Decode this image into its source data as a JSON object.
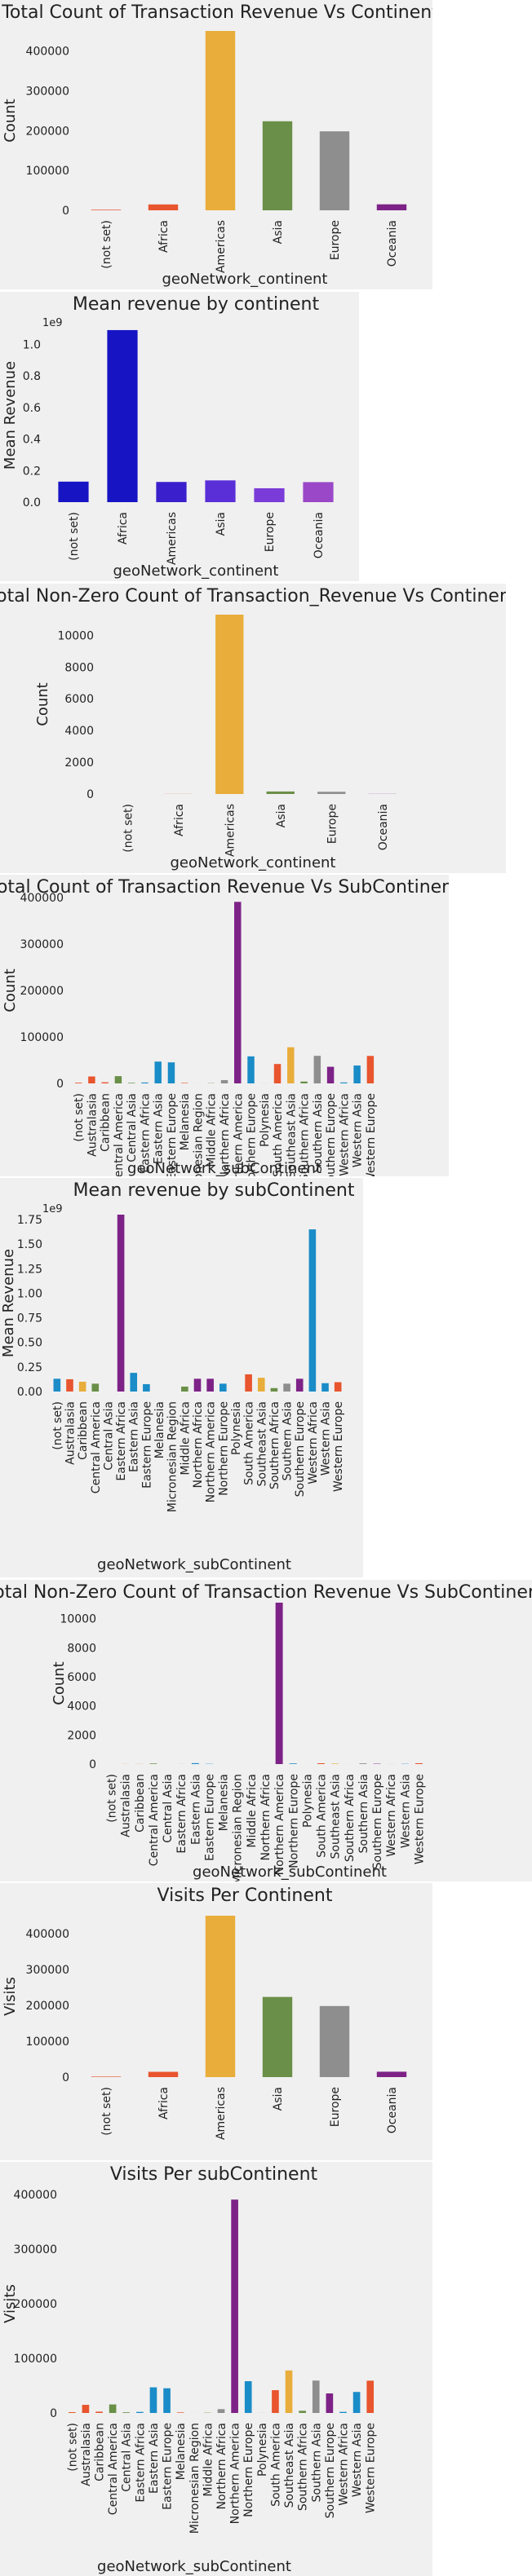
{
  "colors": {
    "panel_bg": "#f0f0f0",
    "tab_orange": "#e8552e",
    "tab_yellow": "#e8ad3a",
    "tab_green": "#6a8f48",
    "tab_grey": "#8e8e8e",
    "tab_purple": "#7d2287",
    "tab_blue": "#1a8cc8",
    "grad_blue": "#1714c4",
    "grad_violet": "#5a2fd8",
    "grad_purple": "#9a48c8"
  },
  "chart_data": [
    {
      "id": "c1",
      "type": "bar",
      "title": "Total Count of Transaction Revenue Vs Continent",
      "xlabel": "geoNetwork_continent",
      "ylabel": "Count",
      "categories": [
        "(not set)",
        "Africa",
        "Americas",
        "Asia",
        "Europe",
        "Oceania"
      ],
      "values": [
        1468,
        14745,
        450377,
        223698,
        198311,
        15054
      ],
      "colors": [
        "#e8552e",
        "#e8552e",
        "#e8ad3a",
        "#6a8f48",
        "#8e8e8e",
        "#7d2287"
      ],
      "ylim": [
        0,
        450377
      ],
      "yticks": [
        0,
        100000,
        200000,
        300000,
        400000
      ],
      "ytick_labels": [
        "0",
        "100000",
        "200000",
        "300000",
        "400000"
      ],
      "exponent": "",
      "grid": false
    },
    {
      "id": "c2",
      "type": "bar",
      "title": "Mean revenue by continent",
      "xlabel": "geoNetwork_continent",
      "ylabel": "Mean Revenue",
      "categories": [
        "(not set)",
        "Africa",
        "Americas",
        "Asia",
        "Europe",
        "Oceania"
      ],
      "values": [
        130000000,
        1090000000,
        128000000,
        138000000,
        88000000,
        127000000
      ],
      "colors": [
        "#1714c4",
        "#1714c4",
        "#3a20cc",
        "#5a2fd8",
        "#7a3cd8",
        "#9a48c8"
      ],
      "ylim": [
        0,
        1100000000
      ],
      "yticks": [
        0,
        200000000,
        400000000,
        600000000,
        800000000,
        1000000000
      ],
      "ytick_labels": [
        "0.0",
        "0.2",
        "0.4",
        "0.6",
        "0.8",
        "1.0"
      ],
      "exponent": "1e9",
      "grid": false
    },
    {
      "id": "c3",
      "type": "bar",
      "title": "Total Non-Zero Count of Transaction_Revenue Vs Continent",
      "xlabel": "geoNetwork_continent",
      "ylabel": "Count",
      "categories": [
        "(not set)",
        "Africa",
        "Americas",
        "Asia",
        "Europe",
        "Oceania"
      ],
      "values": [
        0,
        7,
        11301,
        159,
        140,
        8
      ],
      "colors": [
        "#e8552e",
        "#e8552e",
        "#e8ad3a",
        "#6a8f48",
        "#8e8e8e",
        "#7d2287"
      ],
      "ylim": [
        0,
        11301
      ],
      "yticks": [
        0,
        2000,
        4000,
        6000,
        8000,
        10000
      ],
      "ytick_labels": [
        "0",
        "2000",
        "4000",
        "6000",
        "8000",
        "10000"
      ],
      "exponent": "",
      "grid": false
    },
    {
      "id": "c4",
      "type": "bar",
      "title": "Total Count of Transaction Revenue Vs SubContinent",
      "xlabel": "geoNetwork_subContinent",
      "ylabel": "Count",
      "categories": [
        "(not set)",
        "Australasia",
        "Caribbean",
        "Central America",
        "Central Asia",
        "Eastern Africa",
        "Eastern Asia",
        "Eastern Europe",
        "Melanesia",
        "Micronesian Region",
        "Middle Africa",
        "Northern Africa",
        "Northern America",
        "Northern Europe",
        "Polynesia",
        "South America",
        "Southeast Asia",
        "Southern Africa",
        "Southern Asia",
        "Southern Europe",
        "Western Africa",
        "Western Asia",
        "Western Europe"
      ],
      "values": [
        1468,
        14893,
        2406,
        15583,
        1215,
        1927,
        46919,
        45249,
        1000,
        100,
        500,
        7000,
        390657,
        58168,
        100,
        41731,
        77800,
        4000,
        59321,
        35780,
        2000,
        38443,
        59114
      ],
      "colors": [
        "#e8552e",
        "#e8552e",
        "#e8552e",
        "#6a8f48",
        "#6a8f48",
        "#1a8cc8",
        "#1a8cc8",
        "#1a8cc8",
        "#e8552e",
        "#e8ad3a",
        "#6a8f48",
        "#8e8e8e",
        "#7d2287",
        "#1a8cc8",
        "#e8552e",
        "#e8552e",
        "#e8ad3a",
        "#6a8f48",
        "#8e8e8e",
        "#7d2287",
        "#1a8cc8",
        "#1a8cc8",
        "#e8552e"
      ],
      "ylim": [
        0,
        400000
      ],
      "yticks": [
        0,
        100000,
        200000,
        300000,
        400000
      ],
      "ytick_labels": [
        "0",
        "100000",
        "200000",
        "300000",
        "400000"
      ],
      "exponent": "",
      "grid": false
    },
    {
      "id": "c5",
      "type": "bar",
      "title": "Mean revenue by subContinent",
      "xlabel": "geoNetwork_subContinent",
      "ylabel": "Mean Revenue",
      "categories": [
        "(not set)",
        "Australasia",
        "Caribbean",
        "Central America",
        "Central Asia",
        "Eastern Africa",
        "Eastern Asia",
        "Eastern Europe",
        "Melanesia",
        "Micronesian Region",
        "Middle Africa",
        "Northern Africa",
        "Northern America",
        "Northern Europe",
        "Polynesia",
        "South America",
        "Southeast Asia",
        "Southern Africa",
        "Southern Asia",
        "Southern Europe",
        "Western Africa",
        "Western Asia",
        "Western Europe"
      ],
      "values": [
        130000000,
        125000000,
        100000000,
        80000000,
        0,
        1800000000,
        190000000,
        75000000,
        0,
        0,
        50000000,
        130000000,
        130000000,
        80000000,
        0,
        175000000,
        140000000,
        35000000,
        80000000,
        130000000,
        1650000000,
        85000000,
        95000000
      ],
      "colors": [
        "#1a8cc8",
        "#e8552e",
        "#e8ad3a",
        "#6a8f48",
        "#8e8e8e",
        "#7d2287",
        "#1a8cc8",
        "#1a8cc8",
        "#e8552e",
        "#e8ad3a",
        "#6a8f48",
        "#7d2287",
        "#7d2287",
        "#1a8cc8",
        "#e8552e",
        "#e8552e",
        "#e8ad3a",
        "#6a8f48",
        "#8e8e8e",
        "#7d2287",
        "#1a8cc8",
        "#1a8cc8",
        "#e8552e"
      ],
      "ylim": [
        0,
        1800000000
      ],
      "yticks": [
        0,
        250000000,
        500000000,
        750000000,
        1000000000,
        1250000000,
        1500000000,
        1750000000
      ],
      "ytick_labels": [
        "0.00",
        "0.25",
        "0.50",
        "0.75",
        "1.00",
        "1.25",
        "1.50",
        "1.75"
      ],
      "exponent": "1e9",
      "grid": false
    },
    {
      "id": "c6",
      "type": "bar",
      "title": "Total Non-Zero Count of Transaction Revenue Vs SubContinent",
      "xlabel": "geoNetwork_subContinent",
      "ylabel": "Count",
      "categories": [
        "(not set)",
        "Australasia",
        "Caribbean",
        "Central America",
        "Central Asia",
        "Eastern Africa",
        "Eastern Asia",
        "Eastern Europe",
        "Melanesia",
        "Micronesian Region",
        "Middle Africa",
        "Northern Africa",
        "Northern America",
        "Northern Europe",
        "Polynesia",
        "South America",
        "Southeast Asia",
        "Southern Africa",
        "Southern Asia",
        "Southern Europe",
        "Western Africa",
        "Western Asia",
        "Western Europe"
      ],
      "values": [
        0,
        6,
        7,
        40,
        0,
        3,
        63,
        18,
        0,
        0,
        1,
        2,
        11100,
        44,
        0,
        56,
        35,
        2,
        48,
        24,
        3,
        17,
        60
      ],
      "colors": [
        "#e8552e",
        "#e8552e",
        "#e8552e",
        "#6a8f48",
        "#6a8f48",
        "#1a8cc8",
        "#1a8cc8",
        "#1a8cc8",
        "#e8552e",
        "#e8ad3a",
        "#6a8f48",
        "#8e8e8e",
        "#7d2287",
        "#1a8cc8",
        "#e8552e",
        "#e8552e",
        "#e8ad3a",
        "#6a8f48",
        "#8e8e8e",
        "#7d2287",
        "#1a8cc8",
        "#1a8cc8",
        "#e8552e"
      ],
      "ylim": [
        0,
        11100
      ],
      "yticks": [
        0,
        2000,
        4000,
        6000,
        8000,
        10000
      ],
      "ytick_labels": [
        "0",
        "2000",
        "4000",
        "6000",
        "8000",
        "10000"
      ],
      "exponent": "",
      "grid": false
    },
    {
      "id": "c7",
      "type": "bar",
      "title": "Visits Per Continent",
      "xlabel": "",
      "ylabel": "Visits",
      "categories": [
        "(not set)",
        "Africa",
        "Americas",
        "Asia",
        "Europe",
        "Oceania"
      ],
      "values": [
        1468,
        14745,
        450377,
        223698,
        198311,
        15054
      ],
      "colors": [
        "#e8552e",
        "#e8552e",
        "#e8ad3a",
        "#6a8f48",
        "#8e8e8e",
        "#7d2287"
      ],
      "ylim": [
        0,
        450377
      ],
      "yticks": [
        0,
        100000,
        200000,
        300000,
        400000
      ],
      "ytick_labels": [
        "0",
        "100000",
        "200000",
        "300000",
        "400000"
      ],
      "exponent": "",
      "grid": false
    },
    {
      "id": "c8",
      "type": "bar",
      "title": "Visits Per subContinent",
      "xlabel": "geoNetwork_subContinent",
      "ylabel": "Visits",
      "categories": [
        "(not set)",
        "Australasia",
        "Caribbean",
        "Central America",
        "Central Asia",
        "Eastern Africa",
        "Eastern Asia",
        "Eastern Europe",
        "Melanesia",
        "Micronesian Region",
        "Middle Africa",
        "Northern Africa",
        "Northern America",
        "Northern Europe",
        "Polynesia",
        "South America",
        "Southeast Asia",
        "Southern Africa",
        "Southern Asia",
        "Southern Europe",
        "Western Africa",
        "Western Asia",
        "Western Europe"
      ],
      "values": [
        1468,
        14893,
        2406,
        15583,
        1215,
        1927,
        46919,
        45249,
        1000,
        100,
        500,
        7000,
        390657,
        58168,
        100,
        41731,
        77800,
        4000,
        59321,
        35780,
        2000,
        38443,
        59114
      ],
      "colors": [
        "#e8552e",
        "#e8552e",
        "#e8552e",
        "#6a8f48",
        "#6a8f48",
        "#1a8cc8",
        "#1a8cc8",
        "#1a8cc8",
        "#e8552e",
        "#e8ad3a",
        "#6a8f48",
        "#8e8e8e",
        "#7d2287",
        "#1a8cc8",
        "#e8552e",
        "#e8552e",
        "#e8ad3a",
        "#6a8f48",
        "#8e8e8e",
        "#7d2287",
        "#1a8cc8",
        "#1a8cc8",
        "#e8552e"
      ],
      "ylim": [
        0,
        400000
      ],
      "yticks": [
        0,
        100000,
        200000,
        300000,
        400000
      ],
      "ytick_labels": [
        "0",
        "100000",
        "200000",
        "300000",
        "400000"
      ],
      "exponent": "",
      "grid": false
    }
  ]
}
